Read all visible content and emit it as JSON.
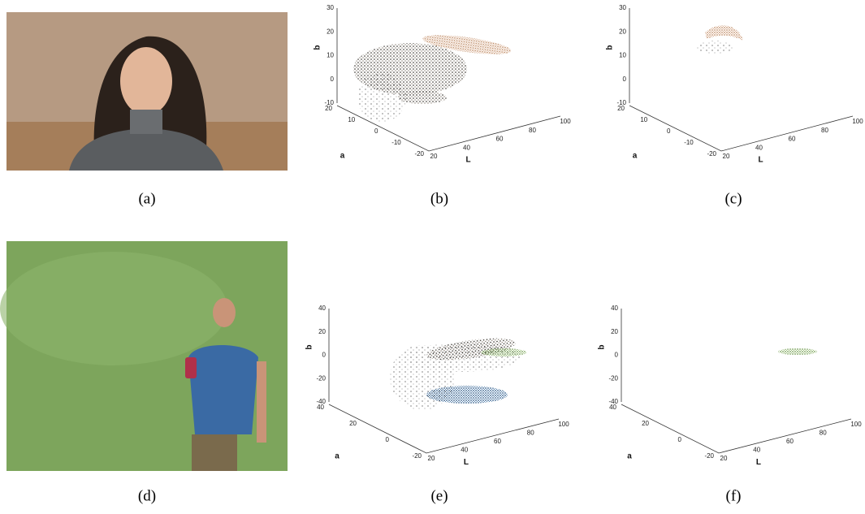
{
  "panels": [
    {
      "caption": "(a)"
    },
    {
      "caption": "(b)",
      "axes": {
        "b_label": "b",
        "a_label": "a",
        "L_label": "L",
        "b_ticks": [
          30,
          20,
          10,
          0,
          -10
        ],
        "a_ticks": [
          20,
          10,
          0,
          -10,
          -20
        ],
        "L_ticks": [
          20,
          40,
          60,
          80,
          100
        ]
      }
    },
    {
      "caption": "(c)",
      "axes": {
        "b_label": "b",
        "a_label": "a",
        "L_label": "L",
        "b_ticks": [
          30,
          20,
          10,
          0,
          -10
        ],
        "a_ticks": [
          20,
          10,
          0,
          -10,
          -20
        ],
        "L_ticks": [
          20,
          40,
          60,
          80,
          100
        ]
      }
    },
    {
      "caption": "(d)"
    },
    {
      "caption": "(e)",
      "axes": {
        "b_label": "b",
        "a_label": "a",
        "L_label": "L",
        "b_ticks": [
          40,
          20,
          0,
          -20,
          -40
        ],
        "a_ticks": [
          40,
          20,
          0,
          -20
        ],
        "L_ticks": [
          20,
          40,
          60,
          80,
          100
        ]
      }
    },
    {
      "caption": "(f)",
      "axes": {
        "b_label": "b",
        "a_label": "a",
        "L_label": "L",
        "b_ticks": [
          40,
          20,
          0,
          -20,
          -40
        ],
        "a_ticks": [
          40,
          20,
          0,
          -20
        ],
        "L_ticks": [
          20,
          40,
          60,
          80,
          100
        ]
      }
    }
  ]
}
